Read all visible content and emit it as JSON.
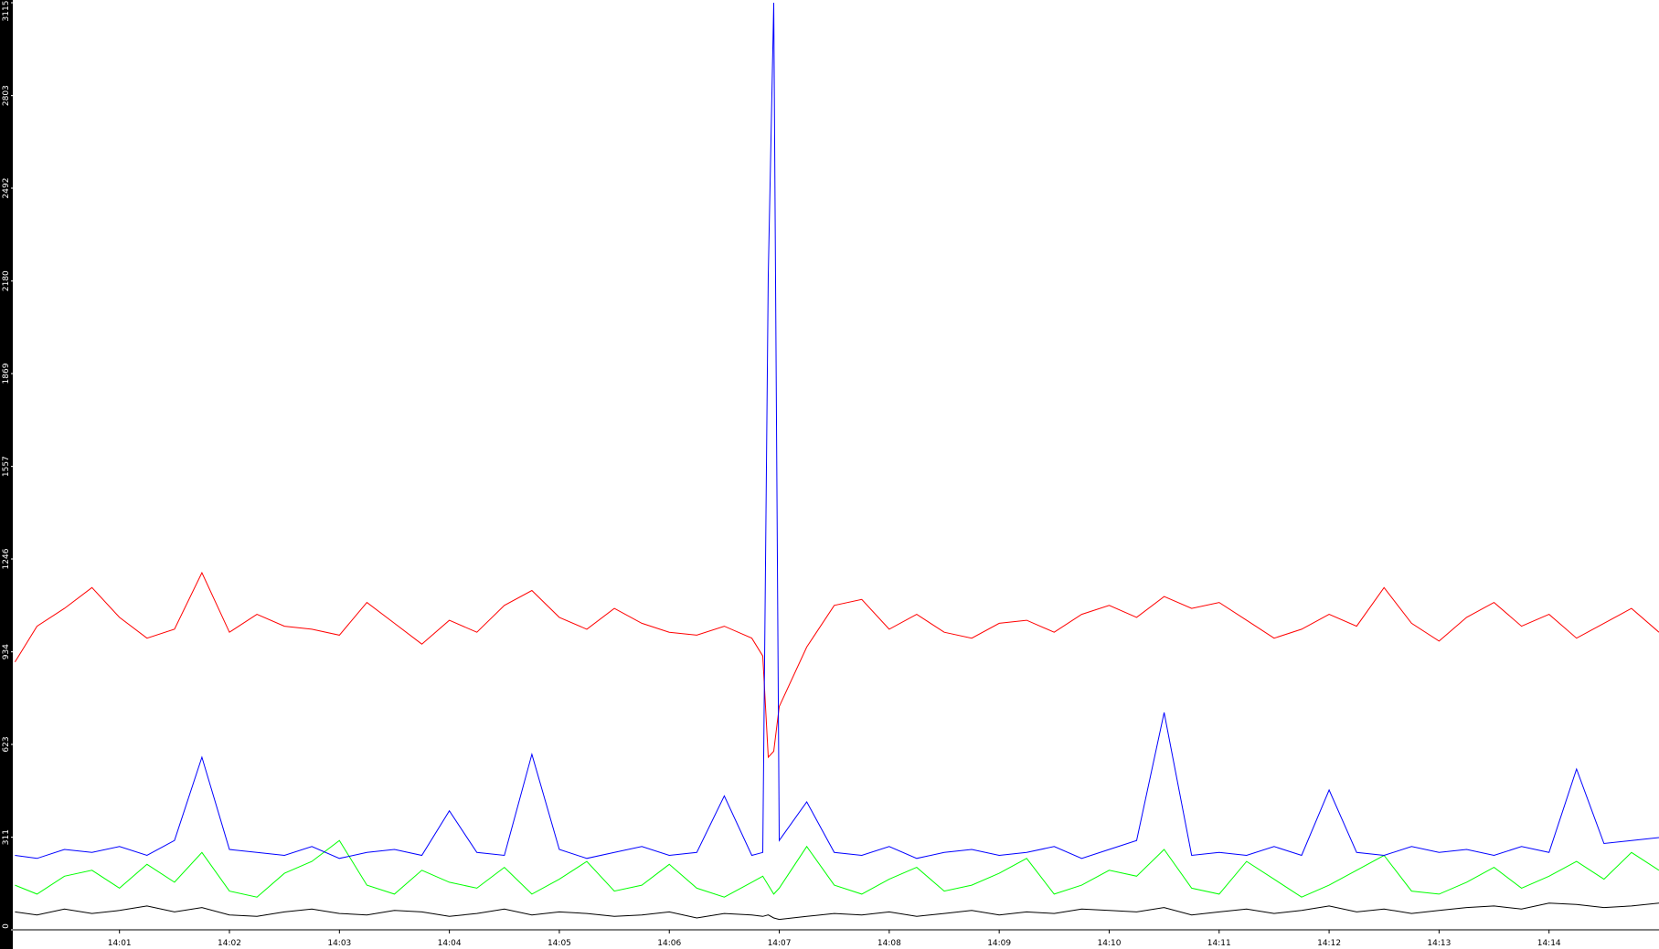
{
  "chart_data": {
    "type": "line",
    "x": [
      0.05,
      0.25,
      0.5,
      0.75,
      1.0,
      1.25,
      1.5,
      1.75,
      2.0,
      2.25,
      2.5,
      2.75,
      3.0,
      3.25,
      3.5,
      3.75,
      4.0,
      4.25,
      4.5,
      4.75,
      5.0,
      5.25,
      5.5,
      5.75,
      6.0,
      6.25,
      6.5,
      6.75,
      6.85,
      6.9,
      6.95,
      7.0,
      7.25,
      7.5,
      7.75,
      8.0,
      8.25,
      8.5,
      8.75,
      9.0,
      9.25,
      9.5,
      9.75,
      10.0,
      10.25,
      10.5,
      10.75,
      11.0,
      11.25,
      11.5,
      11.75,
      12.0,
      12.25,
      12.5,
      12.75,
      13.0,
      13.25,
      13.5,
      13.75,
      14.0,
      14.25,
      14.5,
      14.75,
      15.0
    ],
    "series": [
      {
        "color": "#00ff00",
        "values": [
          150,
          120,
          180,
          200,
          140,
          220,
          160,
          260,
          130,
          110,
          190,
          230,
          300,
          150,
          120,
          200,
          160,
          140,
          210,
          120,
          170,
          230,
          130,
          150,
          220,
          140,
          110,
          160,
          180,
          150,
          120,
          140,
          280,
          150,
          120,
          170,
          210,
          130,
          150,
          190,
          240,
          120,
          150,
          200,
          180,
          270,
          140,
          120,
          230,
          170,
          110,
          150,
          200,
          250,
          130,
          120,
          160,
          210,
          140,
          180,
          230,
          170,
          260,
          200
        ]
      },
      {
        "color": "#000000",
        "values": [
          60,
          50,
          70,
          55,
          65,
          80,
          60,
          75,
          50,
          45,
          60,
          70,
          55,
          50,
          65,
          60,
          45,
          55,
          70,
          50,
          60,
          55,
          45,
          50,
          60,
          40,
          55,
          50,
          45,
          50,
          40,
          35,
          45,
          55,
          50,
          60,
          45,
          55,
          65,
          50,
          60,
          55,
          70,
          65,
          60,
          75,
          50,
          60,
          70,
          55,
          65,
          80,
          60,
          70,
          55,
          65,
          75,
          80,
          70,
          90,
          85,
          75,
          80,
          90
        ]
      },
      {
        "color": "#ff0000",
        "values": [
          900,
          1020,
          1080,
          1150,
          1050,
          980,
          1010,
          1200,
          1000,
          1060,
          1020,
          1010,
          990,
          1100,
          1030,
          960,
          1040,
          1000,
          1090,
          1140,
          1050,
          1010,
          1080,
          1030,
          1000,
          990,
          1020,
          980,
          920,
          580,
          600,
          750,
          950,
          1090,
          1110,
          1010,
          1060,
          1000,
          980,
          1030,
          1040,
          1000,
          1060,
          1090,
          1050,
          1120,
          1080,
          1100,
          1040,
          980,
          1010,
          1060,
          1020,
          1150,
          1030,
          970,
          1050,
          1100,
          1020,
          1060,
          980,
          1030,
          1080,
          1000
        ]
      },
      {
        "color": "#0000ff",
        "values": [
          250,
          240,
          270,
          260,
          280,
          250,
          300,
          580,
          270,
          260,
          250,
          280,
          240,
          260,
          270,
          250,
          400,
          260,
          250,
          590,
          270,
          240,
          260,
          280,
          250,
          260,
          450,
          250,
          260,
          2200,
          3115,
          300,
          430,
          260,
          250,
          280,
          240,
          260,
          270,
          250,
          260,
          280,
          240,
          270,
          300,
          730,
          250,
          260,
          250,
          280,
          250,
          470,
          260,
          250,
          280,
          260,
          270,
          250,
          280,
          260,
          540,
          290,
          300,
          310
        ]
      }
    ],
    "xlim": [
      0.03,
      15
    ],
    "xticks": [
      {
        "value": 1,
        "label": "14:01"
      },
      {
        "value": 2,
        "label": "14:02"
      },
      {
        "value": 3,
        "label": "14:03"
      },
      {
        "value": 4,
        "label": "14:04"
      },
      {
        "value": 5,
        "label": "14:05"
      },
      {
        "value": 6,
        "label": "14:06"
      },
      {
        "value": 7,
        "label": "14:07"
      },
      {
        "value": 8,
        "label": "14:08"
      },
      {
        "value": 9,
        "label": "14:09"
      },
      {
        "value": 10,
        "label": "14:10"
      },
      {
        "value": 11,
        "label": "14:11"
      },
      {
        "value": 12,
        "label": "14:12"
      },
      {
        "value": 13,
        "label": "14:13"
      },
      {
        "value": 14,
        "label": "14:14"
      }
    ],
    "ylim": [
      0,
      3115
    ],
    "yticks": [
      0,
      311,
      623,
      934,
      1246,
      1557,
      1869,
      2180,
      2492,
      2803,
      3115
    ]
  }
}
